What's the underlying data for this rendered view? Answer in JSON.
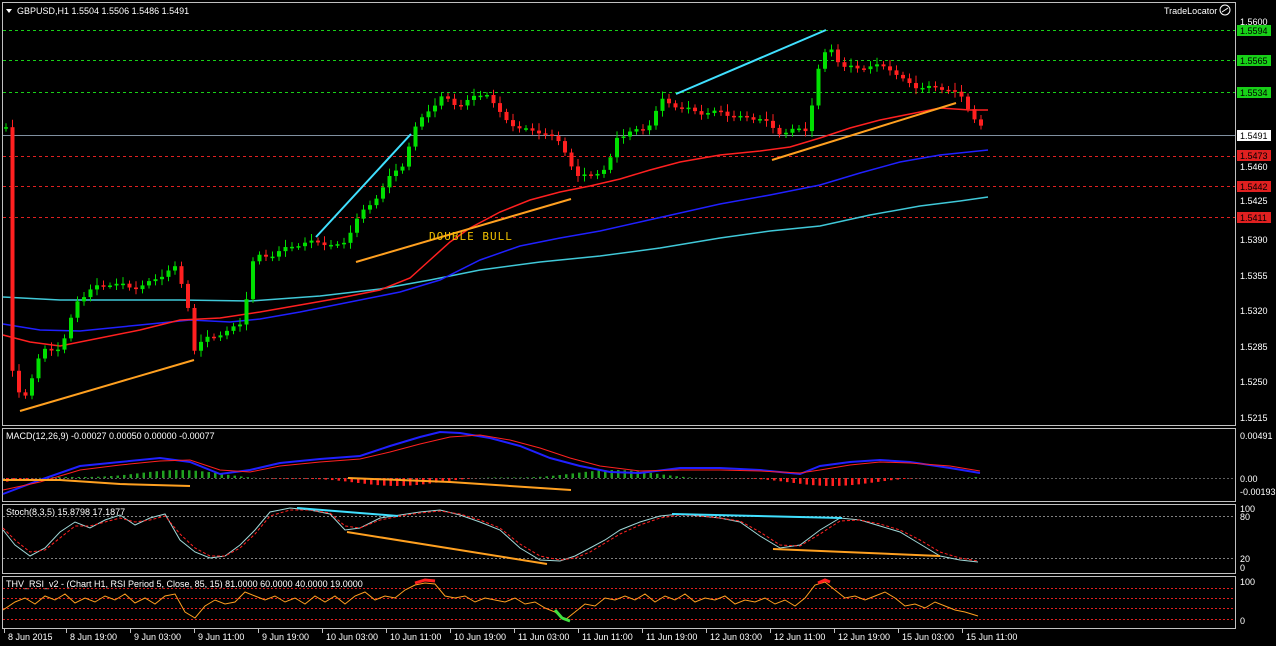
{
  "window": {
    "symbol_line": "GBPUSD,H1  1.5504  1.5506  1.5486  1.5491",
    "trade_locator": "TradeLocator"
  },
  "colors": {
    "bull": "#00e000",
    "bear": "#ff2020",
    "grid_green": "#18d018",
    "grid_red": "#e02020",
    "ma_red": "#ff2020",
    "ma_blue": "#2020ff",
    "ma_cyan": "#40c8d8",
    "trend_cyan": "#40e0ff",
    "trend_orange": "#ffa020"
  },
  "price_axis": {
    "ticks": [
      "1.5600",
      "1.5460",
      "1.5425",
      "1.5390",
      "1.5355",
      "1.5320",
      "1.5285",
      "1.5250",
      "1.5215"
    ],
    "green_levels": [
      "1.5594",
      "1.5565",
      "1.5534"
    ],
    "current": "1.5491",
    "red_levels": [
      "1.5473",
      "1.5442",
      "1.5411"
    ]
  },
  "annotation": "DOUBLE BULL",
  "macd": {
    "title": "MACD(12,26,9) -0.00027 0.00050 0.00000 -0.00077",
    "ticks": [
      "0.00491",
      "0.00",
      "-0.00193"
    ]
  },
  "stoch": {
    "title": "Stoch(8,3,5) 15.8798 17.1877",
    "ticks": [
      "100",
      "80",
      "20",
      "0"
    ]
  },
  "rsi": {
    "title": "THV_RSI_v2 - (Chart H1,  RSI Period 5,  Close,  85,  15)  81.0000 60.0000 40.0000 19.0000",
    "ticks": [
      "100",
      "0"
    ]
  },
  "time_axis": [
    "8 Jun 2015",
    "8 Jun 19:00",
    "9 Jun 03:00",
    "9 Jun 11:00",
    "9 Jun 19:00",
    "10 Jun 03:00",
    "10 Jun 11:00",
    "10 Jun 19:00",
    "11 Jun 03:00",
    "11 Jun 11:00",
    "11 Jun 19:00",
    "12 Jun 03:00",
    "12 Jun 11:00",
    "12 Jun 19:00",
    "15 Jun 03:00",
    "15 Jun 11:00"
  ]
}
